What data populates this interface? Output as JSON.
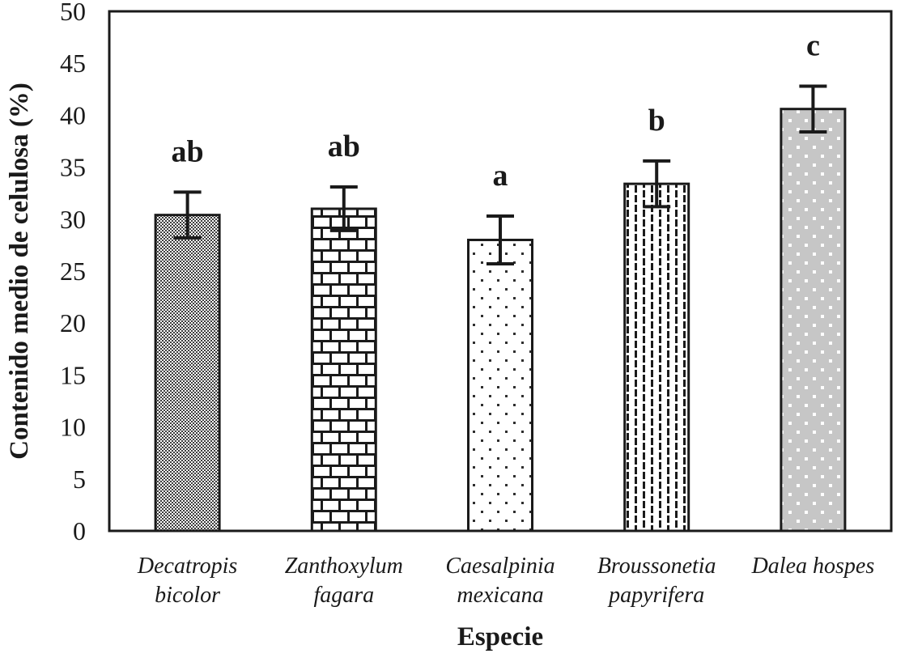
{
  "figure": {
    "background": "#ffffff",
    "ink_color": "#1a1a1a",
    "gray_bar_color": "#c6c6c6"
  },
  "chart_data": {
    "type": "bar",
    "title": "",
    "xlabel": "Especie",
    "ylabel": "Contenido medio de celulosa (%)",
    "ylim": [
      0,
      50
    ],
    "ytick_step": 5,
    "yticks": [
      0,
      5,
      10,
      15,
      20,
      25,
      30,
      35,
      40,
      45,
      50
    ],
    "grid": false,
    "legend_position": "none",
    "categories": [
      "Decatropis bicolor",
      "Zanthoxylum fagara",
      "Caesalpinia mexicana",
      "Broussonetia papyrifera",
      "Dalea hospes"
    ],
    "category_lines": [
      [
        "Decatropis",
        "bicolor"
      ],
      [
        "Zanthoxylum",
        "fagara"
      ],
      [
        "Caesalpinia",
        "mexicana"
      ],
      [
        "Broussonetia",
        "papyrifera"
      ],
      [
        "Dalea hospes"
      ]
    ],
    "series": [
      {
        "name": "Contenido medio de celulosa (%)",
        "values": [
          30.4,
          31.0,
          28.0,
          33.4,
          40.6
        ]
      }
    ],
    "values": [
      30.4,
      31.0,
      28.0,
      33.4,
      40.6
    ],
    "errors": [
      2.2,
      2.1,
      2.3,
      2.2,
      2.2
    ],
    "significance_letters": [
      "ab",
      "ab",
      "a",
      "b",
      "c"
    ],
    "bar_patterns": [
      "fine-stipple",
      "brick",
      "sparse-dots",
      "vertical-dashes",
      "gray-white-dots"
    ]
  }
}
